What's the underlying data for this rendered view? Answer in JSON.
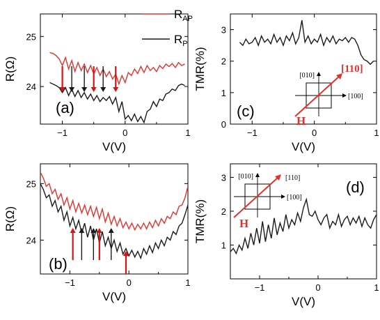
{
  "colors": {
    "red": "#e8302a",
    "black": "#1a1a1a",
    "arrow_red": "#e01010"
  },
  "legend": {
    "rap_main": "R",
    "rap_sub": "AP",
    "rp_main": "R",
    "rp_sub": "P"
  },
  "chart_data": [
    {
      "id": "a",
      "type": "line",
      "panel_label": "(a)",
      "xlabel": "V(V)",
      "ylabel": "R(Ω)",
      "xlim": [
        -1.35,
        1.0
      ],
      "ylim": [
        23.25,
        25.45
      ],
      "xticks": [
        -1,
        0,
        1
      ],
      "yticks": [
        24,
        25
      ],
      "series": [
        {
          "name": "R_AP",
          "color": "#e8302a",
          "x": [
            -1.2,
            -1.15,
            -1.1,
            -1.05,
            -1.0,
            -0.95,
            -0.9,
            -0.85,
            -0.8,
            -0.75,
            -0.7,
            -0.65,
            -0.6,
            -0.55,
            -0.5,
            -0.45,
            -0.4,
            -0.35,
            -0.3,
            -0.25,
            -0.2,
            -0.15,
            -0.1,
            -0.05,
            0.0,
            0.05,
            0.1,
            0.15,
            0.2,
            0.25,
            0.3,
            0.35,
            0.4,
            0.45,
            0.5,
            0.55,
            0.6,
            0.65,
            0.7,
            0.75,
            0.8,
            0.85,
            0.9,
            0.95
          ],
          "y": [
            24.68,
            24.66,
            24.62,
            24.55,
            24.42,
            24.58,
            24.35,
            24.52,
            24.3,
            24.48,
            24.32,
            24.45,
            24.28,
            24.42,
            24.25,
            24.38,
            24.22,
            24.35,
            24.2,
            24.3,
            24.15,
            24.25,
            24.05,
            24.22,
            24.08,
            24.28,
            24.22,
            24.35,
            24.26,
            24.4,
            24.28,
            24.42,
            24.32,
            24.38,
            24.3,
            24.42,
            24.36,
            24.45,
            24.4,
            24.46,
            24.38,
            24.48,
            24.42,
            24.45
          ]
        },
        {
          "name": "R_P",
          "color": "#1a1a1a",
          "x": [
            -1.2,
            -1.15,
            -1.1,
            -1.05,
            -1.0,
            -0.95,
            -0.9,
            -0.85,
            -0.8,
            -0.75,
            -0.7,
            -0.65,
            -0.6,
            -0.55,
            -0.5,
            -0.45,
            -0.4,
            -0.35,
            -0.3,
            -0.25,
            -0.2,
            -0.15,
            -0.1,
            -0.05,
            0.0,
            0.05,
            0.1,
            0.15,
            0.2,
            0.25,
            0.3,
            0.35,
            0.4,
            0.45,
            0.5,
            0.55,
            0.6,
            0.65,
            0.7,
            0.75,
            0.8,
            0.85,
            0.9,
            0.95
          ],
          "y": [
            24.08,
            24.05,
            24.02,
            23.98,
            23.88,
            23.98,
            23.82,
            23.95,
            23.8,
            23.92,
            23.78,
            23.88,
            23.75,
            23.85,
            23.72,
            23.82,
            23.7,
            23.78,
            23.72,
            23.8,
            23.65,
            23.78,
            23.5,
            23.7,
            23.35,
            23.42,
            23.32,
            23.45,
            23.3,
            23.4,
            23.28,
            23.5,
            23.55,
            23.7,
            23.6,
            23.75,
            23.72,
            23.85,
            23.88,
            23.95,
            23.92,
            24.02,
            24.05,
            24.02
          ]
        }
      ],
      "arrows": [
        {
          "x": -1.0,
          "color": "#e01010"
        },
        {
          "x": -0.85,
          "color": "#1a1a1a"
        },
        {
          "x": -0.65,
          "color": "#1a1a1a"
        },
        {
          "x": -0.5,
          "color": "#e01010"
        },
        {
          "x": -0.35,
          "color": "#1a1a1a"
        },
        {
          "x": -0.15,
          "color": "#e01010"
        }
      ]
    },
    {
      "id": "b",
      "type": "line",
      "panel_label": "(b)",
      "xlabel": "V(V)",
      "ylabel": "R(Ω)",
      "xlim": [
        -1.5,
        1.0
      ],
      "ylim": [
        23.4,
        25.35
      ],
      "xticks": [
        -1,
        0,
        1
      ],
      "yticks": [
        24,
        25
      ],
      "series": [
        {
          "name": "R_AP",
          "color": "#e8302a",
          "x": [
            -1.5,
            -1.45,
            -1.4,
            -1.35,
            -1.3,
            -1.25,
            -1.2,
            -1.15,
            -1.1,
            -1.05,
            -1.0,
            -0.95,
            -0.9,
            -0.85,
            -0.8,
            -0.75,
            -0.7,
            -0.65,
            -0.6,
            -0.55,
            -0.5,
            -0.45,
            -0.4,
            -0.35,
            -0.3,
            -0.25,
            -0.2,
            -0.15,
            -0.1,
            -0.05,
            0.0,
            0.05,
            0.1,
            0.15,
            0.2,
            0.25,
            0.3,
            0.35,
            0.4,
            0.45,
            0.5,
            0.55,
            0.6,
            0.65,
            0.7,
            0.75,
            0.8,
            0.85,
            0.9,
            0.95,
            1.0
          ],
          "y": [
            25.2,
            25.1,
            24.95,
            25.0,
            24.82,
            24.9,
            24.72,
            24.82,
            24.62,
            24.75,
            24.55,
            24.7,
            24.5,
            24.65,
            24.48,
            24.62,
            24.45,
            24.6,
            24.42,
            24.58,
            24.38,
            24.55,
            24.32,
            24.48,
            24.28,
            24.42,
            24.25,
            24.38,
            24.22,
            24.32,
            24.2,
            24.3,
            24.18,
            24.28,
            24.2,
            24.3,
            24.2,
            24.32,
            24.22,
            24.35,
            24.25,
            24.38,
            24.3,
            24.42,
            24.38,
            24.5,
            24.45,
            24.6,
            24.62,
            24.75,
            24.95
          ]
        },
        {
          "name": "R_P",
          "color": "#1a1a1a",
          "x": [
            -1.5,
            -1.45,
            -1.4,
            -1.35,
            -1.3,
            -1.25,
            -1.2,
            -1.15,
            -1.1,
            -1.05,
            -1.0,
            -0.95,
            -0.9,
            -0.85,
            -0.8,
            -0.75,
            -0.7,
            -0.65,
            -0.6,
            -0.55,
            -0.5,
            -0.45,
            -0.4,
            -0.35,
            -0.3,
            -0.25,
            -0.2,
            -0.15,
            -0.1,
            -0.05,
            0.0,
            0.05,
            0.1,
            0.15,
            0.2,
            0.25,
            0.3,
            0.35,
            0.4,
            0.45,
            0.5,
            0.55,
            0.6,
            0.65,
            0.7,
            0.75,
            0.8,
            0.85,
            0.9,
            0.95,
            1.0
          ],
          "y": [
            25.0,
            24.9,
            24.75,
            24.8,
            24.6,
            24.7,
            24.5,
            24.6,
            24.35,
            24.5,
            24.25,
            24.4,
            24.2,
            24.35,
            24.12,
            24.3,
            24.05,
            24.25,
            24.0,
            24.2,
            23.95,
            24.15,
            23.9,
            24.05,
            23.85,
            24.0,
            23.8,
            23.95,
            23.75,
            23.85,
            23.72,
            23.82,
            23.7,
            23.8,
            23.68,
            23.85,
            23.75,
            23.9,
            23.78,
            23.95,
            23.85,
            24.0,
            23.9,
            24.05,
            24.0,
            24.15,
            24.1,
            24.25,
            24.3,
            24.45,
            24.62
          ]
        }
      ],
      "arrows": [
        {
          "x": -0.95,
          "color": "#e01010"
        },
        {
          "x": -0.8,
          "color": "#1a1a1a"
        },
        {
          "x": -0.6,
          "color": "#1a1a1a"
        },
        {
          "x": -0.5,
          "color": "#e01010"
        },
        {
          "x": -0.3,
          "color": "#1a1a1a"
        },
        {
          "x": -0.05,
          "color": "#e01010"
        }
      ]
    },
    {
      "id": "c",
      "type": "line",
      "panel_label": "(c)",
      "xlabel": "V(V)",
      "ylabel": "TMR(%)",
      "xlim": [
        -1.35,
        1.0
      ],
      "ylim": [
        0,
        3.5
      ],
      "xticks": [
        -1,
        0,
        1
      ],
      "yticks": [
        0,
        1,
        2,
        3
      ],
      "inset_labels": {
        "y_dir": "[010]",
        "x_dir": "[100]",
        "easy": "[110]",
        "field": "H"
      },
      "series": [
        {
          "name": "TMR",
          "color": "#1a1a1a",
          "x": [
            -1.2,
            -1.15,
            -1.1,
            -1.05,
            -1.0,
            -0.95,
            -0.9,
            -0.85,
            -0.8,
            -0.75,
            -0.7,
            -0.65,
            -0.6,
            -0.55,
            -0.5,
            -0.45,
            -0.4,
            -0.35,
            -0.3,
            -0.25,
            -0.2,
            -0.15,
            -0.1,
            -0.05,
            0.0,
            0.05,
            0.1,
            0.15,
            0.2,
            0.25,
            0.3,
            0.35,
            0.4,
            0.45,
            0.5,
            0.55,
            0.6,
            0.65,
            0.7,
            0.75,
            0.8,
            0.85,
            0.9,
            0.95
          ],
          "y": [
            2.6,
            2.5,
            2.7,
            2.55,
            2.6,
            2.75,
            2.5,
            2.8,
            2.6,
            2.7,
            2.55,
            2.85,
            2.6,
            2.75,
            2.5,
            2.8,
            2.65,
            2.9,
            2.55,
            2.75,
            3.3,
            2.6,
            2.8,
            2.55,
            2.7,
            2.6,
            2.85,
            2.5,
            2.75,
            2.6,
            2.8,
            2.55,
            2.7,
            2.65,
            2.75,
            2.6,
            2.75,
            2.7,
            2.5,
            2.2,
            2.05,
            2.0,
            1.9,
            2.0
          ]
        }
      ]
    },
    {
      "id": "d",
      "type": "line",
      "panel_label": "(d)",
      "xlabel": "V(V)",
      "ylabel": "TMR(%)",
      "xlim": [
        -1.5,
        1.0
      ],
      "ylim": [
        0,
        3.4
      ],
      "xticks": [
        -1,
        0,
        1
      ],
      "yticks": [
        1,
        2,
        3
      ],
      "inset_labels": {
        "y_dir": "[010]",
        "x_dir": "[100]",
        "easy": "[110]",
        "field": "H"
      },
      "series": [
        {
          "name": "TMR",
          "color": "#1a1a1a",
          "x": [
            -1.5,
            -1.45,
            -1.4,
            -1.35,
            -1.3,
            -1.25,
            -1.2,
            -1.15,
            -1.1,
            -1.05,
            -1.0,
            -0.95,
            -0.9,
            -0.85,
            -0.8,
            -0.75,
            -0.7,
            -0.65,
            -0.6,
            -0.55,
            -0.5,
            -0.45,
            -0.4,
            -0.35,
            -0.3,
            -0.25,
            -0.2,
            -0.15,
            -0.1,
            -0.05,
            0.0,
            0.05,
            0.1,
            0.15,
            0.2,
            0.25,
            0.3,
            0.35,
            0.4,
            0.45,
            0.5,
            0.55,
            0.6,
            0.65,
            0.7,
            0.75,
            0.8,
            0.85,
            0.9,
            0.95,
            1.0
          ],
          "y": [
            0.8,
            0.9,
            0.75,
            1.0,
            0.85,
            1.2,
            0.9,
            1.35,
            1.0,
            1.5,
            1.05,
            1.7,
            1.1,
            1.6,
            1.2,
            1.8,
            1.3,
            1.65,
            1.4,
            1.9,
            1.5,
            1.75,
            1.6,
            1.95,
            1.7,
            2.1,
            2.35,
            1.9,
            1.85,
            2.0,
            1.75,
            1.6,
            1.8,
            1.9,
            1.5,
            1.7,
            1.6,
            1.9,
            1.55,
            1.75,
            1.85,
            1.6,
            1.8,
            1.65,
            1.85,
            1.55,
            1.8,
            1.6,
            1.5,
            1.75,
            1.9
          ]
        }
      ]
    }
  ]
}
